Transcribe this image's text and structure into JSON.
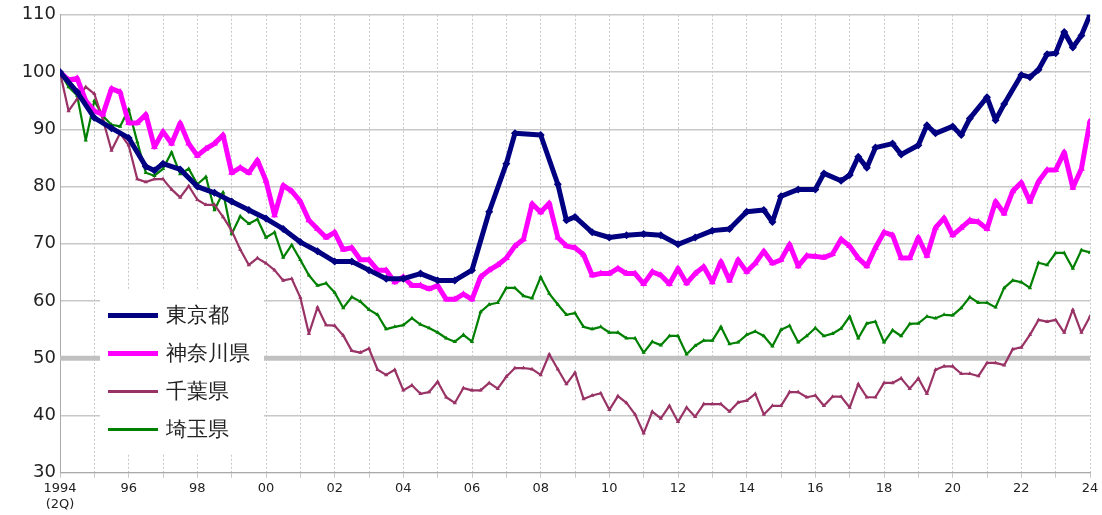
{
  "chart_data": {
    "type": "line",
    "xlim": [
      1994,
      2024
    ],
    "xticks": [
      {
        "value": 1994,
        "label": "1994\n(2Q)"
      },
      {
        "value": 1995,
        "label": null
      },
      {
        "value": 1996,
        "label": "96"
      },
      {
        "value": 1997,
        "label": null
      },
      {
        "value": 1998,
        "label": "98"
      },
      {
        "value": 1999,
        "label": null
      },
      {
        "value": 2000,
        "label": "00"
      },
      {
        "value": 2001,
        "label": null
      },
      {
        "value": 2002,
        "label": "02"
      },
      {
        "value": 2003,
        "label": null
      },
      {
        "value": 2004,
        "label": "04"
      },
      {
        "value": 2005,
        "label": null
      },
      {
        "value": 2006,
        "label": "06"
      },
      {
        "value": 2007,
        "label": null
      },
      {
        "value": 2008,
        "label": "08"
      },
      {
        "value": 2009,
        "label": null
      },
      {
        "value": 2010,
        "label": "10"
      },
      {
        "value": 2011,
        "label": null
      },
      {
        "value": 2012,
        "label": "12"
      },
      {
        "value": 2013,
        "label": null
      },
      {
        "value": 2014,
        "label": "14"
      },
      {
        "value": 2015,
        "label": null
      },
      {
        "value": 2016,
        "label": "16"
      },
      {
        "value": 2017,
        "label": null
      },
      {
        "value": 2018,
        "label": "18"
      },
      {
        "value": 2019,
        "label": null
      },
      {
        "value": 2020,
        "label": "20"
      },
      {
        "value": 2021,
        "label": null
      },
      {
        "value": 2022,
        "label": "22"
      },
      {
        "value": 2023,
        "label": null
      },
      {
        "value": 2024,
        "label": "24"
      }
    ],
    "ylim": [
      30,
      110
    ],
    "yticks": [
      30,
      40,
      50,
      60,
      70,
      80,
      90,
      100,
      110
    ],
    "grid": true,
    "legend": "bottom left",
    "line_style": "solid",
    "ref_lines": [
      {
        "axis": "y",
        "value": 50,
        "color": "#c0c0c0"
      }
    ],
    "series": [
      {
        "name": "東京都",
        "color": "#000080",
        "marker": "diamond",
        "x": [
          1994,
          1994.5,
          1995,
          1995.5,
          1996,
          1996.5,
          1996.75,
          1997,
          1997.5,
          1998,
          1998.5,
          1999,
          1999.5,
          2000,
          2000.5,
          2001,
          2001.5,
          2002,
          2002.5,
          2003,
          2003.5,
          2004,
          2004.5,
          2005,
          2005.5,
          2006,
          2006.5,
          2007,
          2007.25,
          2008,
          2008.5,
          2008.75,
          2009,
          2009.5,
          2010,
          2010.5,
          2011,
          2011.5,
          2012,
          2012.5,
          2013,
          2013.5,
          2014,
          2014.5,
          2014.75,
          2015,
          2015.5,
          2016,
          2016.25,
          2016.75,
          2017,
          2017.25,
          2017.5,
          2017.75,
          2018.25,
          2018.5,
          2019,
          2019.25,
          2019.5,
          2020,
          2020.25,
          2020.5,
          2021,
          2021.25,
          2021.5,
          2022,
          2022.25,
          2022.5,
          2022.75,
          2023,
          2023.25,
          2023.5,
          2023.75,
          2024
        ],
        "values": [
          100,
          96.5,
          92,
          90.2,
          88.5,
          83.5,
          82.8,
          84,
          83,
          80,
          78.9,
          77.4,
          75.9,
          74.4,
          72.6,
          70.3,
          68.7,
          66.9,
          66.9,
          65.4,
          63.9,
          63.9,
          64.8,
          63.6,
          63.6,
          65.4,
          75.6,
          84,
          89.3,
          89,
          80.4,
          74.1,
          74.7,
          72,
          71.1,
          71.5,
          71.7,
          71.5,
          69.9,
          71.1,
          72.3,
          72.6,
          75.6,
          75.9,
          73.8,
          78.3,
          79.5,
          79.5,
          82.3,
          81,
          82,
          85.2,
          83.3,
          86.8,
          87.5,
          85.6,
          87.2,
          90.7,
          89.3,
          90.5,
          89,
          91.9,
          95.6,
          91.6,
          94.4,
          99.5,
          99.1,
          100.4,
          103.1,
          103.3,
          107,
          104.3,
          106.4,
          110
        ]
      },
      {
        "name": "神奈川県",
        "color": "#ff00ff",
        "marker": "triangle",
        "x": [
          1994,
          1994.25,
          1994.5,
          1994.75,
          1995,
          1995.25,
          1995.5,
          1995.75,
          1996,
          1996.25,
          1996.5,
          1996.75,
          1997,
          1997.25,
          1997.5,
          1997.75,
          1998,
          1998.25,
          1998.5,
          1998.75,
          1999,
          1999.25,
          1999.5,
          1999.75,
          2000,
          2000.25,
          2000.5,
          2000.75,
          2001,
          2001.25,
          2001.5,
          2001.75,
          2002,
          2002.25,
          2002.5,
          2002.75,
          2003,
          2003.25,
          2003.5,
          2003.75,
          2004,
          2004.25,
          2004.5,
          2004.75,
          2005,
          2005.25,
          2005.5,
          2005.75,
          2006,
          2006.25,
          2006.5,
          2006.75,
          2007,
          2007.25,
          2007.5,
          2007.75,
          2008,
          2008.25,
          2008.5,
          2008.75,
          2009,
          2009.25,
          2009.5,
          2009.75,
          2010,
          2010.25,
          2010.5,
          2010.75,
          2011,
          2011.25,
          2011.5,
          2011.75,
          2012,
          2012.25,
          2012.5,
          2012.75,
          2013,
          2013.25,
          2013.5,
          2013.75,
          2014,
          2014.25,
          2014.5,
          2014.75,
          2015,
          2015.25,
          2015.5,
          2015.75,
          2016,
          2016.25,
          2016.5,
          2016.75,
          2017,
          2017.25,
          2017.5,
          2017.75,
          2018,
          2018.25,
          2018.5,
          2018.75,
          2019,
          2019.25,
          2019.5,
          2019.75,
          2020,
          2020.25,
          2020.5,
          2020.75,
          2021,
          2021.25,
          2021.5,
          2021.75,
          2022,
          2022.25,
          2022.5,
          2022.75,
          2023,
          2023.25,
          2023.5,
          2023.75,
          2024
        ],
        "values": [
          100,
          98.6,
          98.9,
          95,
          93.2,
          92.6,
          97.1,
          96.5,
          91.1,
          91.1,
          92.6,
          86.9,
          89.6,
          87.5,
          91.1,
          87.5,
          85.4,
          86.6,
          87.5,
          89,
          82.4,
          83.3,
          82.4,
          84.6,
          81,
          75,
          80.2,
          79.2,
          77.4,
          74.1,
          72.6,
          71.1,
          72,
          69,
          69.3,
          67.2,
          67.2,
          65.4,
          65.4,
          63.3,
          64.2,
          62.7,
          62.7,
          62.1,
          62.7,
          60.3,
          60.3,
          61.2,
          60.3,
          64.2,
          65.4,
          66.3,
          67.5,
          69.6,
          70.8,
          77,
          75.5,
          77.1,
          71.1,
          69.6,
          69.3,
          68.1,
          64.5,
          64.8,
          64.8,
          65.7,
          64.8,
          64.8,
          63,
          65.1,
          64.5,
          63,
          65.7,
          63.1,
          64.8,
          66,
          63.3,
          66.9,
          63.6,
          67.2,
          65.1,
          66.6,
          68.7,
          66.6,
          67.2,
          69.9,
          66.1,
          67.9,
          67.8,
          67.6,
          68.2,
          70.8,
          69.6,
          67.5,
          66.1,
          69.3,
          72,
          71.5,
          67.5,
          67.5,
          71.1,
          67.9,
          72.8,
          74.5,
          71.5,
          72.8,
          74.1,
          73.8,
          72.6,
          77.4,
          75.3,
          79.2,
          80.7,
          77.4,
          80.9,
          82.9,
          82.9,
          86,
          79.8,
          83.1,
          91.4
        ]
      },
      {
        "name": "千葉県",
        "color": "#993366",
        "marker": "triangle",
        "x": [
          1994,
          1994.25,
          1994.5,
          1994.75,
          1995,
          1995.25,
          1995.5,
          1995.75,
          1996,
          1996.25,
          1996.5,
          1996.75,
          1997,
          1997.25,
          1997.5,
          1997.75,
          1998,
          1998.25,
          1998.5,
          1998.75,
          1999,
          1999.25,
          1999.5,
          1999.75,
          2000,
          2000.25,
          2000.5,
          2000.75,
          2001,
          2001.25,
          2001.5,
          2001.75,
          2002,
          2002.25,
          2002.5,
          2002.75,
          2003,
          2003.25,
          2003.5,
          2003.75,
          2004,
          2004.25,
          2004.5,
          2004.75,
          2005,
          2005.25,
          2005.5,
          2005.75,
          2006,
          2006.25,
          2006.5,
          2006.75,
          2007,
          2007.25,
          2007.5,
          2007.75,
          2008,
          2008.25,
          2008.5,
          2008.75,
          2009,
          2009.25,
          2009.5,
          2009.75,
          2010,
          2010.25,
          2010.5,
          2010.75,
          2011,
          2011.25,
          2011.5,
          2011.75,
          2012,
          2012.25,
          2012.5,
          2012.75,
          2013,
          2013.25,
          2013.5,
          2013.75,
          2014,
          2014.25,
          2014.5,
          2014.75,
          2015,
          2015.25,
          2015.5,
          2015.75,
          2016,
          2016.25,
          2016.5,
          2016.75,
          2017,
          2017.25,
          2017.5,
          2017.75,
          2018,
          2018.25,
          2018.5,
          2018.75,
          2019,
          2019.25,
          2019.5,
          2019.75,
          2020,
          2020.25,
          2020.5,
          2020.75,
          2021,
          2021.25,
          2021.5,
          2021.75,
          2022,
          2022.25,
          2022.5,
          2022.75,
          2023,
          2023.25,
          2023.5,
          2023.75,
          2024
        ],
        "values": [
          100,
          93.2,
          95.3,
          97.4,
          96.2,
          91.7,
          86.3,
          89.3,
          87.2,
          81.3,
          80.8,
          81.3,
          81.3,
          79.5,
          78.1,
          80.1,
          77.7,
          76.8,
          76.8,
          74.7,
          72.3,
          69,
          66.3,
          67.5,
          66.6,
          65.4,
          63.6,
          63.9,
          60.6,
          54.3,
          58.9,
          55.8,
          55.7,
          54,
          51.3,
          51,
          51.7,
          48,
          47.1,
          48,
          44.4,
          45.3,
          43.8,
          44.1,
          45.9,
          43.2,
          42.2,
          44.8,
          44.4,
          44.4,
          45.7,
          44.7,
          46.8,
          48.3,
          48.3,
          48.1,
          47.1,
          50.7,
          48.1,
          45.5,
          47.5,
          42.9,
          43.5,
          43.9,
          41,
          43.4,
          42.2,
          40.2,
          36.9,
          40.7,
          39.5,
          41.7,
          38.9,
          41.4,
          39.8,
          42,
          42,
          42,
          40.7,
          42.3,
          42.6,
          43.8,
          40.2,
          41.7,
          41.7,
          44.1,
          44.1,
          43.2,
          43.5,
          41.7,
          43.3,
          43.3,
          41.4,
          45.5,
          43.2,
          43.2,
          45.7,
          45.7,
          46.5,
          44.7,
          46.5,
          43.8,
          48,
          48.6,
          48.6,
          47.3,
          47.3,
          46.9,
          49.2,
          49.2,
          48.8,
          51.6,
          51.9,
          54.1,
          56.7,
          56.4,
          56.7,
          54.5,
          58.5,
          54.5,
          57.3
        ]
      },
      {
        "name": "埼玉県",
        "color": "#008000",
        "marker": "triangle",
        "x": [
          1994,
          1994.25,
          1994.5,
          1994.75,
          1995,
          1995.25,
          1995.5,
          1995.75,
          1996,
          1996.25,
          1996.5,
          1996.75,
          1997,
          1997.25,
          1997.5,
          1997.75,
          1998,
          1998.25,
          1998.5,
          1998.75,
          1999,
          1999.25,
          1999.5,
          1999.75,
          2000,
          2000.25,
          2000.5,
          2000.75,
          2001,
          2001.25,
          2001.5,
          2001.75,
          2002,
          2002.25,
          2002.5,
          2002.75,
          2003,
          2003.25,
          2003.5,
          2003.75,
          2004,
          2004.25,
          2004.5,
          2004.75,
          2005,
          2005.25,
          2005.5,
          2005.75,
          2006,
          2006.25,
          2006.5,
          2006.75,
          2007,
          2007.25,
          2007.5,
          2007.75,
          2008,
          2008.25,
          2008.5,
          2008.75,
          2009,
          2009.25,
          2009.5,
          2009.75,
          2010,
          2010.25,
          2010.5,
          2010.75,
          2011,
          2011.25,
          2011.5,
          2011.75,
          2012,
          2012.25,
          2012.5,
          2012.75,
          2013,
          2013.25,
          2013.5,
          2013.75,
          2014,
          2014.25,
          2014.5,
          2014.75,
          2015,
          2015.25,
          2015.5,
          2015.75,
          2016,
          2016.25,
          2016.5,
          2016.75,
          2017,
          2017.25,
          2017.5,
          2017.75,
          2018,
          2018.25,
          2018.5,
          2018.75,
          2019,
          2019.25,
          2019.5,
          2019.75,
          2020,
          2020.25,
          2020.5,
          2020.75,
          2021,
          2021.25,
          2021.5,
          2021.75,
          2022,
          2022.25,
          2022.5,
          2022.75,
          2023,
          2023.25,
          2023.5,
          2023.75,
          2024
        ],
        "values": [
          100,
          97.4,
          95.9,
          88.1,
          95,
          92.3,
          90.8,
          90.5,
          93.5,
          87.8,
          82.4,
          81.9,
          83.1,
          86,
          82.2,
          83.1,
          80.4,
          81.7,
          75.9,
          79,
          71.7,
          74.8,
          73.5,
          74.3,
          71.1,
          72,
          67.6,
          69.8,
          67.2,
          64.5,
          62.7,
          63.1,
          61.5,
          58.8,
          60.7,
          59.9,
          58.5,
          57.6,
          55.1,
          55.5,
          55.8,
          57,
          55.9,
          55.3,
          54.5,
          53.5,
          52.9,
          54.1,
          52.9,
          58.1,
          59.4,
          59.7,
          62.3,
          62.3,
          60.9,
          60.5,
          64.2,
          61.3,
          59.4,
          57.6,
          57.9,
          55.5,
          55.1,
          55.5,
          54.5,
          54.5,
          53.5,
          53.5,
          51,
          52.9,
          52.3,
          53.9,
          53.9,
          50.7,
          52.2,
          53.1,
          53.1,
          55.5,
          52.5,
          52.8,
          54.1,
          54.7,
          53.9,
          52.1,
          55,
          55.7,
          52.8,
          53.9,
          55.3,
          53.9,
          54.3,
          55.2,
          57.3,
          53.5,
          56.1,
          56.4,
          52.8,
          54.9,
          53.9,
          56,
          56.1,
          57.3,
          57,
          57.6,
          57.5,
          58.8,
          60.7,
          59.7,
          59.7,
          58.9,
          62.3,
          63.6,
          63.3,
          62.3,
          66.7,
          66.3,
          68.4,
          68.4,
          65.7,
          68.9,
          68.5
        ]
      }
    ]
  }
}
